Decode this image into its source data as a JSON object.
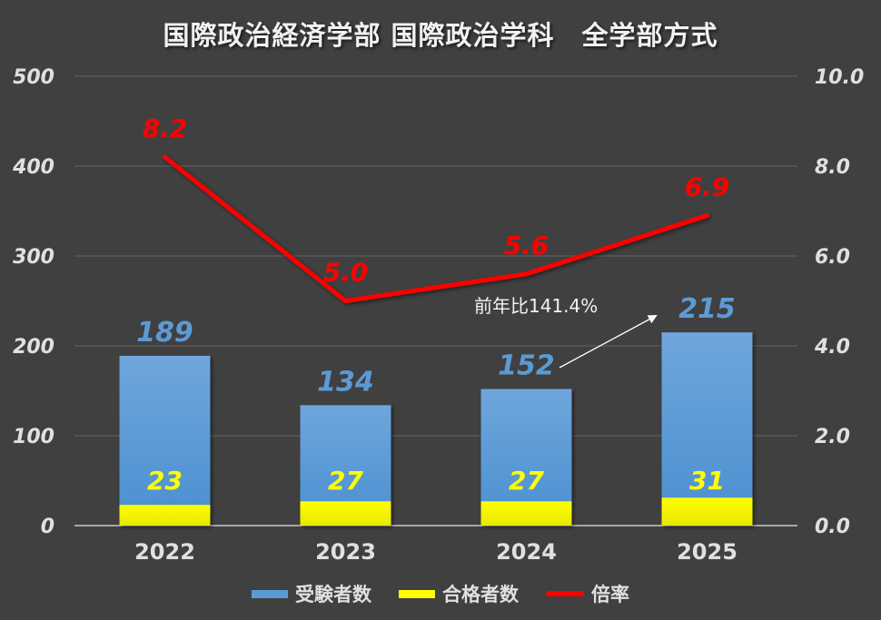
{
  "title": "国際政治経済学部 国際政治学科　全学部方式",
  "legend": [
    {
      "label": "受験者数",
      "color": "#5b9bd5",
      "kind": "bar"
    },
    {
      "label": "合格者数",
      "color": "#ffff00",
      "kind": "bar"
    },
    {
      "label": "倍率",
      "color": "#ff0000",
      "kind": "line"
    }
  ],
  "annotation": {
    "text": "前年比141.4%"
  },
  "axes": {
    "left_ticks": [
      "0",
      "100",
      "200",
      "300",
      "400",
      "500"
    ],
    "right_ticks": [
      "0.0",
      "2.0",
      "4.0",
      "6.0",
      "8.0",
      "10.0"
    ]
  },
  "chart_data": {
    "type": "bar",
    "title": "国際政治経済学部 国際政治学科　全学部方式",
    "categories": [
      "2022",
      "2023",
      "2024",
      "2025"
    ],
    "series": [
      {
        "name": "受験者数",
        "type": "bar",
        "axis": "left",
        "color": "#5b9bd5",
        "values": [
          189,
          134,
          152,
          215
        ]
      },
      {
        "name": "合格者数",
        "type": "bar",
        "axis": "left",
        "color": "#ffff00",
        "values": [
          23,
          27,
          27,
          31
        ]
      },
      {
        "name": "倍率",
        "type": "line",
        "axis": "right",
        "color": "#ff0000",
        "values": [
          8.2,
          5.0,
          5.6,
          6.9
        ]
      }
    ],
    "ylim_left": [
      0,
      500
    ],
    "ylim_right": [
      0,
      10
    ],
    "xlabel": "",
    "ylabel": "",
    "grid": true,
    "legend_position": "bottom",
    "annotations": [
      {
        "text": "前年比141.4%",
        "from": "2024",
        "to": "2025"
      }
    ]
  }
}
